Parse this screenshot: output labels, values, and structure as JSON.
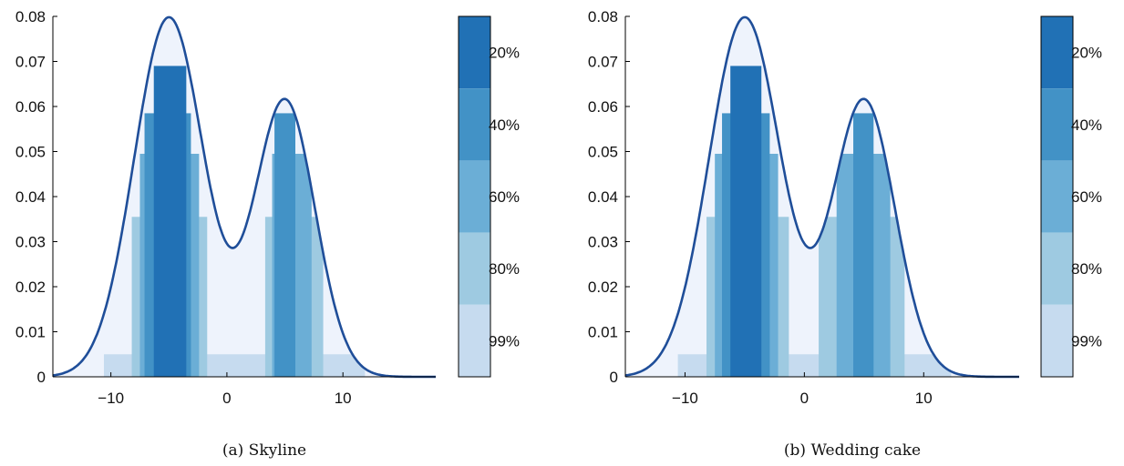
{
  "colors": {
    "band_99": "#c6dbef",
    "band_80": "#9ecae1",
    "band_60": "#6baed6",
    "band_40": "#4292c6",
    "band_20": "#2171b5",
    "fill": "#eef3fc",
    "curve": "#1f4e99"
  },
  "chart_data": [
    {
      "type": "area",
      "caption": "(a) Skyline",
      "xlim": [
        -15,
        18
      ],
      "ylim": [
        0,
        0.08
      ],
      "xticks": [
        -10,
        0,
        10
      ],
      "xtick_labels": [
        "−10",
        "0",
        "10"
      ],
      "yticks": [
        0,
        0.01,
        0.02,
        0.03,
        0.04,
        0.05,
        0.06,
        0.07,
        0.08
      ],
      "ytick_labels": [
        "0",
        "0.01",
        "0.02",
        "0.03",
        "0.04",
        "0.05",
        "0.06",
        "0.07",
        "0.08"
      ],
      "grid": false,
      "density_curve": {
        "components": [
          {
            "weight": 0.6,
            "mean": -5,
            "sd": 3
          },
          {
            "weight": 0.4,
            "mean": 5,
            "sd": 2.6
          }
        ]
      },
      "bands": [
        {
          "level": "99%",
          "density": 0.005,
          "intervals": [
            [
              -10.6,
              11.9
            ]
          ]
        },
        {
          "level": "80%",
          "density": 0.0355,
          "intervals": [
            [
              -8.2,
              -1.7
            ],
            [
              3.3,
              8.3
            ]
          ]
        },
        {
          "level": "60%",
          "density": 0.0495,
          "intervals": [
            [
              -7.5,
              -2.4
            ],
            [
              3.9,
              7.3
            ]
          ]
        },
        {
          "level": "40%",
          "density": 0.0585,
          "intervals": [
            [
              -7.1,
              -3.1
            ],
            [
              4.1,
              5.9
            ]
          ]
        },
        {
          "level": "20%",
          "density": 0.069,
          "intervals": [
            [
              -6.3,
              -3.5
            ]
          ]
        }
      ],
      "colorbar": {
        "labels": [
          "20%",
          "40%",
          "60%",
          "80%",
          "99%"
        ]
      }
    },
    {
      "type": "area",
      "caption": "(b) Wedding cake",
      "xlim": [
        -15,
        18
      ],
      "ylim": [
        0,
        0.08
      ],
      "xticks": [
        -10,
        0,
        10
      ],
      "xtick_labels": [
        "−10",
        "0",
        "10"
      ],
      "yticks": [
        0,
        0.01,
        0.02,
        0.03,
        0.04,
        0.05,
        0.06,
        0.07,
        0.08
      ],
      "ytick_labels": [
        "0",
        "0.01",
        "0.02",
        "0.03",
        "0.04",
        "0.05",
        "0.06",
        "0.07",
        "0.08"
      ],
      "grid": false,
      "density_curve": {
        "components": [
          {
            "weight": 0.6,
            "mean": -5,
            "sd": 3
          },
          {
            "weight": 0.4,
            "mean": 5,
            "sd": 2.6
          }
        ]
      },
      "bands": [
        {
          "level": "99%",
          "density": 0.005,
          "intervals": [
            [
              -10.6,
              12.3
            ]
          ]
        },
        {
          "level": "80%",
          "density": 0.0355,
          "intervals": [
            [
              -8.2,
              -1.3
            ],
            [
              1.2,
              8.4
            ]
          ]
        },
        {
          "level": "60%",
          "density": 0.0495,
          "intervals": [
            [
              -7.5,
              -2.2
            ],
            [
              2.7,
              7.2
            ]
          ]
        },
        {
          "level": "40%",
          "density": 0.0585,
          "intervals": [
            [
              -6.9,
              -2.9
            ],
            [
              4.1,
              5.8
            ]
          ]
        },
        {
          "level": "20%",
          "density": 0.069,
          "intervals": [
            [
              -6.2,
              -3.6
            ]
          ]
        }
      ],
      "colorbar": {
        "labels": [
          "20%",
          "40%",
          "60%",
          "80%",
          "99%"
        ]
      }
    }
  ]
}
